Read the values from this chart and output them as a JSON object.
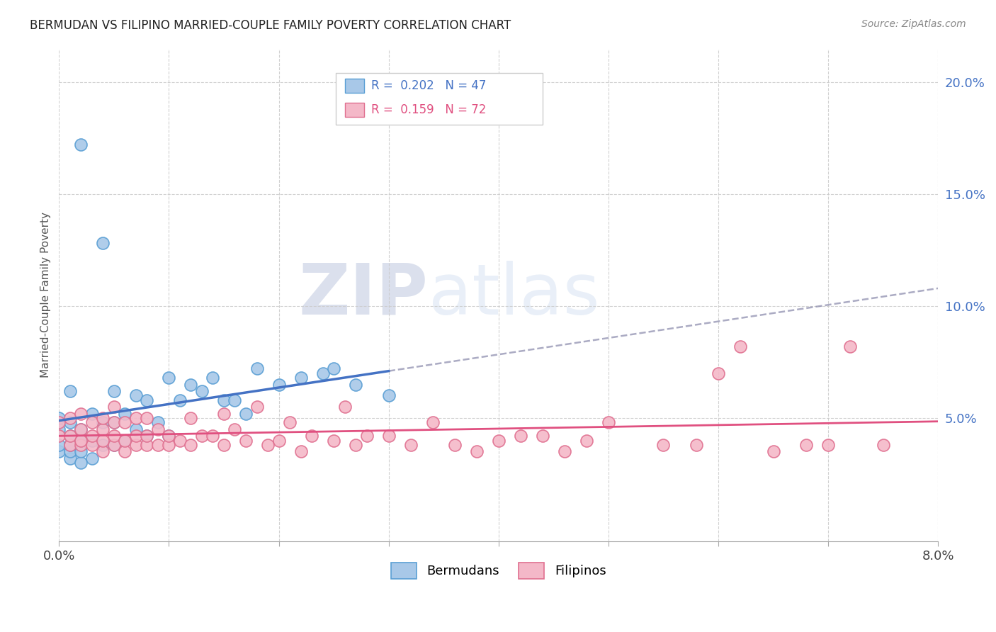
{
  "title": "BERMUDAN VS FILIPINO MARRIED-COUPLE FAMILY POVERTY CORRELATION CHART",
  "source": "Source: ZipAtlas.com",
  "ylabel": "Married-Couple Family Poverty",
  "ytick_labels": [
    "5.0%",
    "10.0%",
    "15.0%",
    "20.0%"
  ],
  "ytick_values": [
    0.05,
    0.1,
    0.15,
    0.2
  ],
  "xlim": [
    0.0,
    0.08
  ],
  "ylim": [
    -0.005,
    0.215
  ],
  "bermudan_R": 0.202,
  "bermudan_N": 47,
  "filipino_R": 0.159,
  "filipino_N": 72,
  "bermudan_color": "#a8c8e8",
  "bermudan_edge_color": "#5a9fd4",
  "bermudan_line_color": "#4472c4",
  "filipino_color": "#f4b8c8",
  "filipino_edge_color": "#e07090",
  "filipino_line_color": "#e05080",
  "watermark_zip": "ZIP",
  "watermark_atlas": "atlas",
  "bermudan_x": [
    0.0,
    0.0,
    0.0,
    0.0,
    0.001,
    0.001,
    0.001,
    0.001,
    0.001,
    0.001,
    0.002,
    0.002,
    0.002,
    0.002,
    0.002,
    0.003,
    0.003,
    0.003,
    0.004,
    0.004,
    0.004,
    0.005,
    0.005,
    0.005,
    0.006,
    0.006,
    0.007,
    0.007,
    0.008,
    0.008,
    0.009,
    0.01,
    0.01,
    0.011,
    0.012,
    0.013,
    0.014,
    0.015,
    0.016,
    0.017,
    0.018,
    0.02,
    0.022,
    0.024,
    0.025,
    0.027,
    0.03
  ],
  "bermudan_y": [
    0.035,
    0.038,
    0.045,
    0.05,
    0.032,
    0.035,
    0.038,
    0.042,
    0.048,
    0.062,
    0.03,
    0.035,
    0.04,
    0.045,
    0.172,
    0.032,
    0.04,
    0.052,
    0.038,
    0.048,
    0.128,
    0.038,
    0.048,
    0.062,
    0.04,
    0.052,
    0.045,
    0.06,
    0.042,
    0.058,
    0.048,
    0.042,
    0.068,
    0.058,
    0.065,
    0.062,
    0.068,
    0.058,
    0.058,
    0.052,
    0.072,
    0.065,
    0.068,
    0.07,
    0.072,
    0.065,
    0.06
  ],
  "filipino_x": [
    0.0,
    0.0,
    0.001,
    0.001,
    0.001,
    0.002,
    0.002,
    0.002,
    0.002,
    0.003,
    0.003,
    0.003,
    0.004,
    0.004,
    0.004,
    0.004,
    0.005,
    0.005,
    0.005,
    0.005,
    0.006,
    0.006,
    0.006,
    0.007,
    0.007,
    0.007,
    0.008,
    0.008,
    0.008,
    0.009,
    0.009,
    0.01,
    0.01,
    0.011,
    0.012,
    0.012,
    0.013,
    0.014,
    0.015,
    0.015,
    0.016,
    0.017,
    0.018,
    0.019,
    0.02,
    0.021,
    0.022,
    0.023,
    0.025,
    0.026,
    0.027,
    0.028,
    0.03,
    0.032,
    0.034,
    0.036,
    0.038,
    0.04,
    0.042,
    0.044,
    0.046,
    0.048,
    0.05,
    0.055,
    0.058,
    0.06,
    0.062,
    0.065,
    0.068,
    0.07,
    0.072,
    0.075
  ],
  "filipino_y": [
    0.042,
    0.048,
    0.038,
    0.042,
    0.05,
    0.038,
    0.04,
    0.045,
    0.052,
    0.038,
    0.042,
    0.048,
    0.035,
    0.04,
    0.045,
    0.05,
    0.038,
    0.042,
    0.048,
    0.055,
    0.035,
    0.04,
    0.048,
    0.038,
    0.042,
    0.05,
    0.038,
    0.042,
    0.05,
    0.038,
    0.045,
    0.038,
    0.042,
    0.04,
    0.038,
    0.05,
    0.042,
    0.042,
    0.038,
    0.052,
    0.045,
    0.04,
    0.055,
    0.038,
    0.04,
    0.048,
    0.035,
    0.042,
    0.04,
    0.055,
    0.038,
    0.042,
    0.042,
    0.038,
    0.048,
    0.038,
    0.035,
    0.04,
    0.042,
    0.042,
    0.035,
    0.04,
    0.048,
    0.038,
    0.038,
    0.07,
    0.082,
    0.035,
    0.038,
    0.038,
    0.082,
    0.038
  ]
}
